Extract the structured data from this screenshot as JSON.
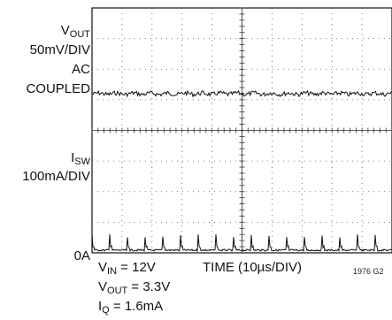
{
  "chart_data": {
    "type": "line",
    "title": "",
    "grid": true,
    "x_axis": {
      "label": "TIME (10µs/DIV)",
      "divisions": 10
    },
    "traces": [
      {
        "name_main": "V",
        "name_sub": "OUT",
        "scale": "50mV/DIV",
        "coupling_line1": "AC",
        "coupling_line2": "COUPLED",
        "description": "noisy flat ripple",
        "ripple_mV_pp": 10
      },
      {
        "name_main": "I",
        "name_sub": "SW",
        "scale": "100mA/DIV",
        "zero_label": "0A",
        "description": "periodic current spikes",
        "spike_count": 17,
        "peak_mA": 33
      }
    ],
    "conditions": {
      "vin_main": "V",
      "vin_sub": "IN",
      "vin_val": " = 12V",
      "vout_main": "V",
      "vout_sub": "OUT",
      "vout_val": " = 3.3V",
      "iq_main": "I",
      "iq_sub": "Q",
      "iq_val": " = 1.6mA"
    },
    "figure_id": "1976 G2"
  }
}
